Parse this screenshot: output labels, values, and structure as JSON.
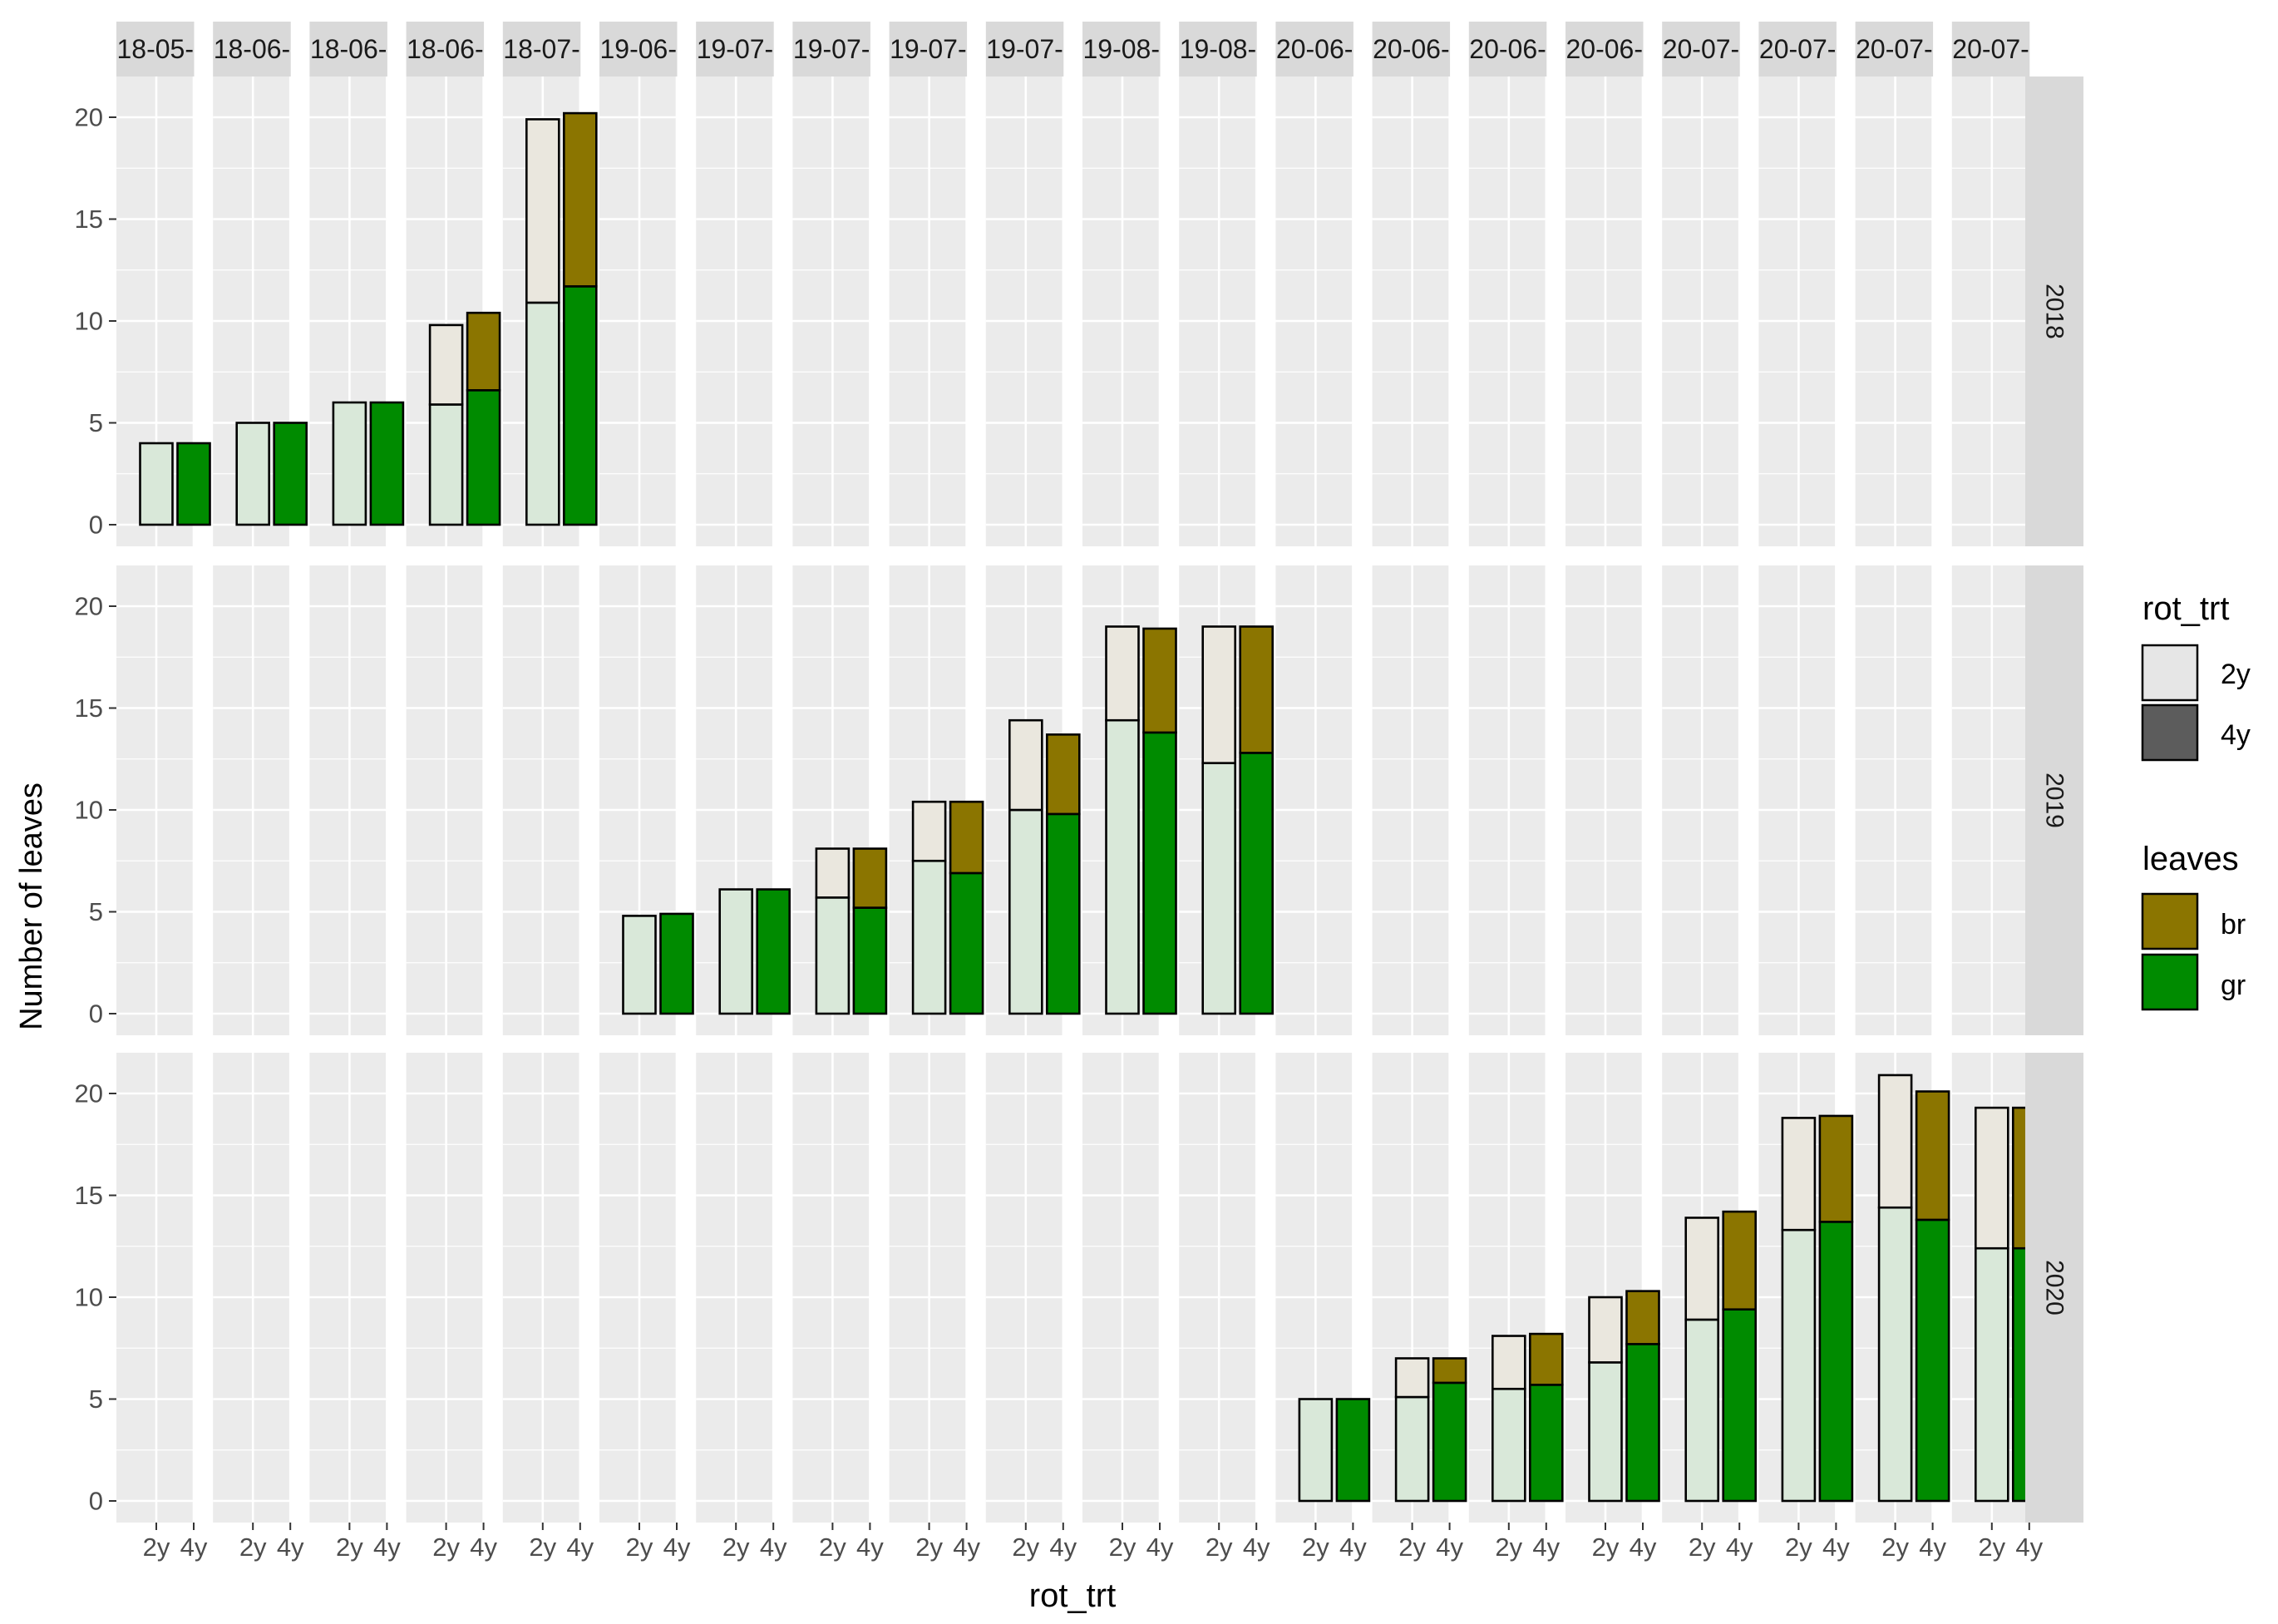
{
  "chart_data": {
    "type": "bar",
    "stacked": true,
    "facet_columns": [
      "18-05-",
      "18-06-",
      "18-06-",
      "18-06-",
      "18-07-",
      "19-06-",
      "19-07-",
      "19-07-",
      "19-07-",
      "19-07-",
      "19-08-",
      "19-08-",
      "20-06-",
      "20-06-",
      "20-06-",
      "20-06-",
      "20-07-",
      "20-07-",
      "20-07-",
      "20-07-"
    ],
    "facet_rows": [
      "2018",
      "2019",
      "2020"
    ],
    "categories": [
      "2y",
      "4y"
    ],
    "xlabel": "rot_trt",
    "ylabel": "Number of leaves",
    "ylim": [
      0,
      21
    ],
    "yticks": [
      0,
      5,
      10,
      15,
      20
    ],
    "grid": true,
    "legend_position": "right",
    "legends": [
      {
        "title": "rot_trt",
        "entries": [
          {
            "label": "2y",
            "color": "#e6e6e6"
          },
          {
            "label": "4y",
            "color": "#5c5c5c"
          }
        ]
      },
      {
        "title": "leaves",
        "entries": [
          {
            "label": "br",
            "color": "#8b7500"
          },
          {
            "label": "gr",
            "color": "#008b00"
          }
        ]
      }
    ],
    "colors": {
      "br": "#8b7500",
      "gr": "#008b00",
      "br_2y": "#eae7de",
      "gr_2y": "#d9e8d9",
      "panel": "#ebebeb",
      "strip": "#d9d9d9",
      "grid": "#ffffff"
    },
    "bars": [
      {
        "row": 0,
        "col": 0,
        "trt": "2y",
        "gr": 4,
        "br": 0
      },
      {
        "row": 0,
        "col": 0,
        "trt": "4y",
        "gr": 4,
        "br": 0
      },
      {
        "row": 0,
        "col": 1,
        "trt": "2y",
        "gr": 5,
        "br": 0
      },
      {
        "row": 0,
        "col": 1,
        "trt": "4y",
        "gr": 5,
        "br": 0
      },
      {
        "row": 0,
        "col": 2,
        "trt": "2y",
        "gr": 6,
        "br": 0
      },
      {
        "row": 0,
        "col": 2,
        "trt": "4y",
        "gr": 6,
        "br": 0
      },
      {
        "row": 0,
        "col": 3,
        "trt": "2y",
        "gr": 5.9,
        "br": 3.9
      },
      {
        "row": 0,
        "col": 3,
        "trt": "4y",
        "gr": 6.6,
        "br": 3.8
      },
      {
        "row": 0,
        "col": 4,
        "trt": "2y",
        "gr": 10.9,
        "br": 9.0
      },
      {
        "row": 0,
        "col": 4,
        "trt": "4y",
        "gr": 11.7,
        "br": 8.5
      },
      {
        "row": 1,
        "col": 5,
        "trt": "2y",
        "gr": 4.8,
        "br": 0
      },
      {
        "row": 1,
        "col": 5,
        "trt": "4y",
        "gr": 4.9,
        "br": 0
      },
      {
        "row": 1,
        "col": 6,
        "trt": "2y",
        "gr": 6.1,
        "br": 0
      },
      {
        "row": 1,
        "col": 6,
        "trt": "4y",
        "gr": 6.1,
        "br": 0
      },
      {
        "row": 1,
        "col": 7,
        "trt": "2y",
        "gr": 5.7,
        "br": 2.4
      },
      {
        "row": 1,
        "col": 7,
        "trt": "4y",
        "gr": 5.2,
        "br": 2.9
      },
      {
        "row": 1,
        "col": 8,
        "trt": "2y",
        "gr": 7.5,
        "br": 2.9
      },
      {
        "row": 1,
        "col": 8,
        "trt": "4y",
        "gr": 6.9,
        "br": 3.5
      },
      {
        "row": 1,
        "col": 9,
        "trt": "2y",
        "gr": 10.0,
        "br": 4.4
      },
      {
        "row": 1,
        "col": 9,
        "trt": "4y",
        "gr": 9.8,
        "br": 3.9
      },
      {
        "row": 1,
        "col": 10,
        "trt": "2y",
        "gr": 14.4,
        "br": 4.6
      },
      {
        "row": 1,
        "col": 10,
        "trt": "4y",
        "gr": 13.8,
        "br": 5.1
      },
      {
        "row": 1,
        "col": 11,
        "trt": "2y",
        "gr": 12.3,
        "br": 6.7
      },
      {
        "row": 1,
        "col": 11,
        "trt": "4y",
        "gr": 12.8,
        "br": 6.2
      },
      {
        "row": 2,
        "col": 12,
        "trt": "2y",
        "gr": 5.0,
        "br": 0
      },
      {
        "row": 2,
        "col": 12,
        "trt": "4y",
        "gr": 5.0,
        "br": 0
      },
      {
        "row": 2,
        "col": 13,
        "trt": "2y",
        "gr": 5.1,
        "br": 1.9
      },
      {
        "row": 2,
        "col": 13,
        "trt": "4y",
        "gr": 5.8,
        "br": 1.2
      },
      {
        "row": 2,
        "col": 14,
        "trt": "2y",
        "gr": 5.5,
        "br": 2.6
      },
      {
        "row": 2,
        "col": 14,
        "trt": "4y",
        "gr": 5.7,
        "br": 2.5
      },
      {
        "row": 2,
        "col": 15,
        "trt": "2y",
        "gr": 6.8,
        "br": 3.2
      },
      {
        "row": 2,
        "col": 15,
        "trt": "4y",
        "gr": 7.7,
        "br": 2.6
      },
      {
        "row": 2,
        "col": 16,
        "trt": "2y",
        "gr": 8.9,
        "br": 5.0
      },
      {
        "row": 2,
        "col": 16,
        "trt": "4y",
        "gr": 9.4,
        "br": 4.8
      },
      {
        "row": 2,
        "col": 17,
        "trt": "2y",
        "gr": 13.3,
        "br": 5.5
      },
      {
        "row": 2,
        "col": 17,
        "trt": "4y",
        "gr": 13.7,
        "br": 5.2
      },
      {
        "row": 2,
        "col": 18,
        "trt": "2y",
        "gr": 14.4,
        "br": 6.5
      },
      {
        "row": 2,
        "col": 18,
        "trt": "4y",
        "gr": 13.8,
        "br": 6.3
      },
      {
        "row": 2,
        "col": 19,
        "trt": "2y",
        "gr": 12.4,
        "br": 6.9
      },
      {
        "row": 2,
        "col": 19,
        "trt": "4y",
        "gr": 12.4,
        "br": 6.9
      }
    ]
  }
}
